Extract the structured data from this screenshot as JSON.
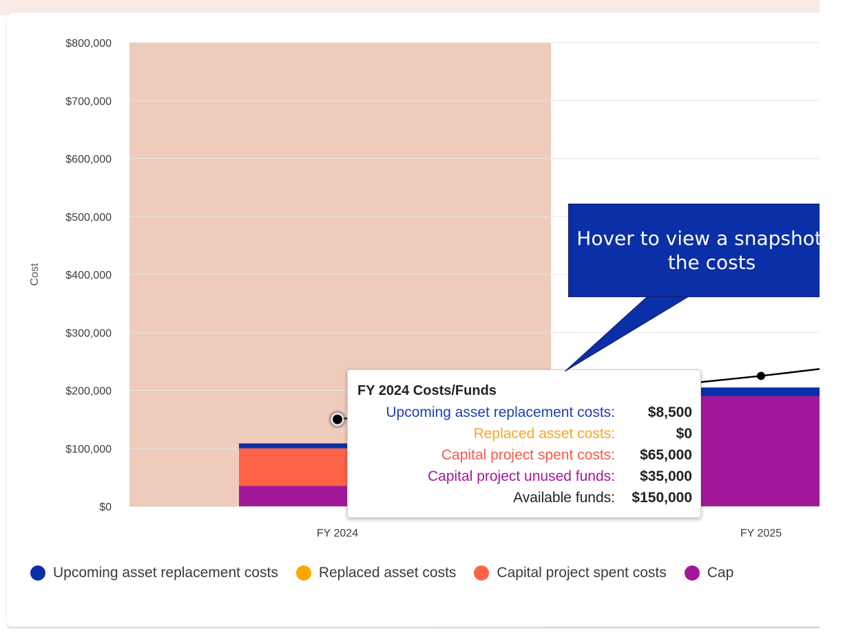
{
  "chart_data": {
    "type": "bar",
    "stacked": true,
    "ylabel": "Cost",
    "xlabel": "",
    "ylim": [
      0,
      800000
    ],
    "yticks": [
      "$0",
      "$100,000",
      "$200,000",
      "$300,000",
      "$400,000",
      "$500,000",
      "$600,000",
      "$700,000",
      "$800,000"
    ],
    "categories": [
      "FY 2024",
      "FY 2025"
    ],
    "highlighted_category": "FY 2024",
    "series": [
      {
        "name": "Upcoming asset replacement costs",
        "color": "#0b2fa6",
        "values": [
          8500,
          15000
        ]
      },
      {
        "name": "Replaced asset costs",
        "color": "#ffa500",
        "values": [
          0,
          0
        ]
      },
      {
        "name": "Capital project spent costs",
        "color": "#ff6347",
        "values": [
          65000,
          0
        ]
      },
      {
        "name": "Capital project unused funds",
        "color": "#a3189b",
        "values": [
          35000,
          190000
        ]
      }
    ],
    "line_series": {
      "name": "Available funds",
      "color": "#000000",
      "values": [
        150000,
        225000
      ]
    },
    "grid": true,
    "legend": "bottom"
  },
  "legend_items": [
    {
      "label": "Upcoming asset replacement costs",
      "color": "#0b2fa6"
    },
    {
      "label": "Replaced asset costs",
      "color": "#ffa500"
    },
    {
      "label": "Capital project spent costs",
      "color": "#ff6347"
    },
    {
      "label": "Cap",
      "color": "#a3189b"
    }
  ],
  "tooltip": {
    "title": "FY 2024 Costs/Funds",
    "rows": [
      {
        "label": "Upcoming asset replacement costs:",
        "value": "$8,500",
        "color": "#1f3fb0"
      },
      {
        "label": "Replaced asset costs:",
        "value": "$0",
        "color": "#f5a623"
      },
      {
        "label": "Capital project spent costs:",
        "value": "$65,000",
        "color": "#f25b4b"
      },
      {
        "label": "Capital project unused funds:",
        "value": "$35,000",
        "color": "#a3189b"
      },
      {
        "label": "Available funds:",
        "value": "$150,000",
        "color": "#222222"
      }
    ]
  },
  "callout": {
    "text": "Hover to view a snapshot of the costs"
  },
  "colors": {
    "highlight_band": "#efcbbb",
    "grid": "#e4e4e4",
    "callout_bg": "#0a2fa6"
  }
}
